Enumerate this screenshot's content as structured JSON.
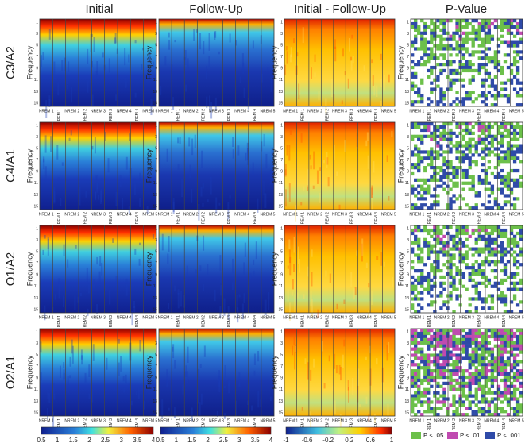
{
  "columns": [
    "Initial",
    "Follow-Up",
    "Initial - Follow-Up",
    "P-Value"
  ],
  "rows": [
    "C3/A2",
    "C4/A1",
    "O1/A2",
    "O2/A1"
  ],
  "y_axis_label": "Frequency",
  "y_ticks": [
    "1",
    "3",
    "5",
    "7",
    "9",
    "11",
    "13",
    "15"
  ],
  "stages": [
    "NREM 1",
    "REM 1",
    "NREM 2",
    "REM 2",
    "NREM 3",
    "REM 3",
    "NREM 4",
    "REM 4",
    "NREM 5"
  ],
  "colorbars": [
    {
      "ticks": [
        "0.5",
        "1",
        "1.5",
        "2",
        "2.5",
        "3",
        "3.5",
        "4"
      ]
    },
    {
      "ticks": [
        "0.5",
        "1",
        "1.5",
        "2",
        "2.5",
        "3",
        "3.5",
        "4"
      ]
    },
    {
      "ticks": [
        "-1",
        "-0.6",
        "-0.2",
        "0.2",
        "0.6",
        "1"
      ]
    }
  ],
  "legend": [
    {
      "label": "P < .05",
      "color": "#6cc04a"
    },
    {
      "label": "P < .01",
      "color": "#c04ab0"
    },
    {
      "label": "P < .001",
      "color": "#2e4aa8"
    }
  ]
}
